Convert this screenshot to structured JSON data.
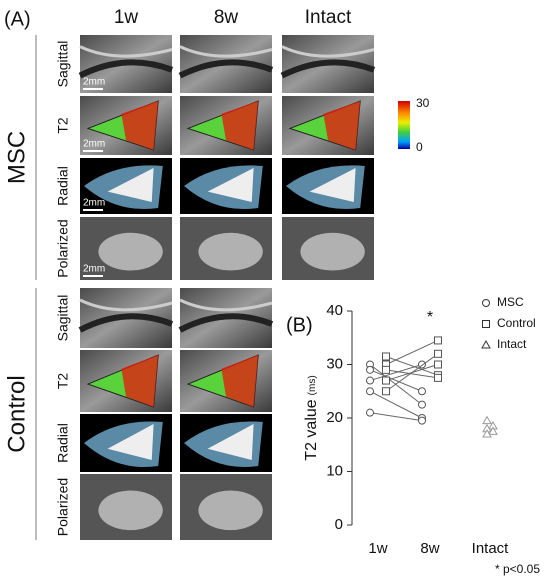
{
  "panel_a": {
    "label": "(A)",
    "columns": [
      "1w",
      "8w",
      "Intact"
    ],
    "groups": [
      {
        "name": "MSC",
        "rows": [
          "Sagittal",
          "T2",
          "Radial",
          "Polarized"
        ]
      },
      {
        "name": "Control",
        "rows": [
          "Sagittal",
          "T2",
          "Radial",
          "Polarized"
        ]
      }
    ],
    "scale_bar": "2mm",
    "colorbar": {
      "ticks": [
        30,
        0
      ]
    }
  },
  "chart_data": {
    "type": "paired-scatter",
    "label": "(B)",
    "y_label": "T2 value",
    "y_unit": "(ms)",
    "categories": [
      "1w",
      "8w",
      "Intact"
    ],
    "ylim": [
      0,
      40
    ],
    "yticks": [
      0,
      10,
      20,
      30,
      40
    ],
    "series": [
      {
        "name": "MSC",
        "marker": "circle",
        "color": "#555555",
        "values": [
          [
            30,
            22.5,
            null
          ],
          [
            29,
            25,
            null
          ],
          [
            27,
            30,
            null
          ],
          [
            25,
            20,
            null
          ],
          [
            21,
            19.5,
            null
          ]
        ]
      },
      {
        "name": "Control",
        "marker": "square",
        "color": "#555555",
        "values": [
          [
            31.5,
            28,
            null
          ],
          [
            30,
            34.5,
            null
          ],
          [
            29,
            27.5,
            null
          ],
          [
            27,
            30,
            null
          ],
          [
            25,
            32,
            null
          ]
        ]
      },
      {
        "name": "Intact",
        "marker": "triangle",
        "color": "#999999",
        "values": [
          [
            null,
            null,
            19.5
          ],
          [
            null,
            null,
            18.5
          ],
          [
            null,
            null,
            18
          ],
          [
            null,
            null,
            17.5
          ],
          [
            null,
            null,
            17
          ]
        ]
      }
    ],
    "annotation": "*",
    "footnote": "* p<0.05"
  }
}
